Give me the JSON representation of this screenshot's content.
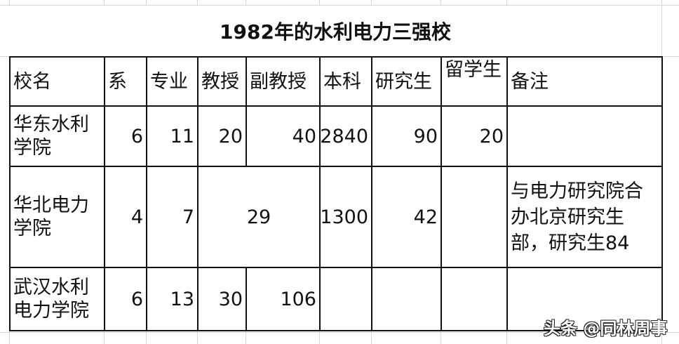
{
  "title": "1982年的水利电力三强校",
  "headers": [
    "校名",
    "系",
    "专业",
    "教授",
    "副教授",
    "本科",
    "研究生",
    "留学生",
    "备注"
  ],
  "rows": [
    {
      "name": "华东水利学院",
      "dept": "6",
      "major": "11",
      "prof": "20",
      "assoc": "40",
      "undergrad": "2840",
      "grad": "90",
      "intl": "20",
      "note": ""
    },
    {
      "name": "华北电力学院",
      "dept": "4",
      "major": "7",
      "prof_assoc_merged": "29",
      "undergrad": "1300",
      "grad": "42",
      "intl": "",
      "note": "与电力研究院合办北京研究生部，研究生84"
    },
    {
      "name": "武汉水利电力学院",
      "dept": "6",
      "major": "13",
      "prof": "30",
      "assoc": "106",
      "undergrad": "",
      "grad": "",
      "intl": "",
      "note": ""
    }
  ],
  "watermark": "头条 @同林周事"
}
